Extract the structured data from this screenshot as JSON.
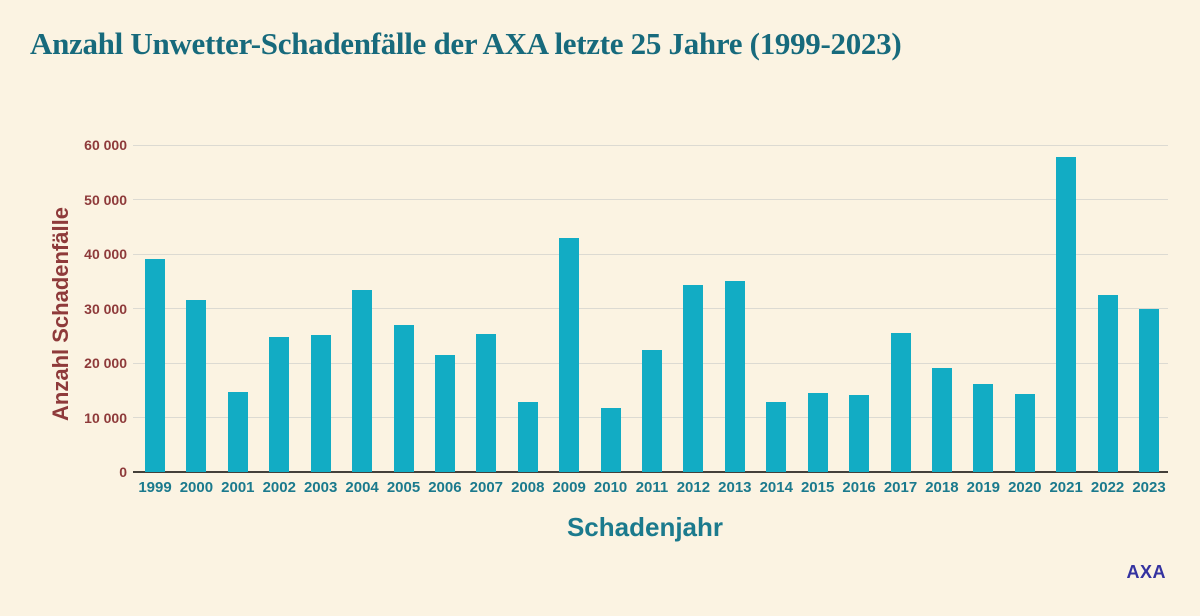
{
  "title": "Anzahl Unwetter-Schadenfälle der AXA letzte 25 Jahre (1999-2023)",
  "logo_text": "AXA",
  "chart_data": {
    "type": "bar",
    "title": "Anzahl Unwetter-Schadenfälle der AXA letzte 25 Jahre (1999-2023)",
    "xlabel": "Schadenjahr",
    "ylabel": "Anzahl Schadenfälle",
    "ylim": [
      0,
      60000
    ],
    "ytick_values": [
      0,
      10000,
      20000,
      30000,
      40000,
      50000,
      60000
    ],
    "ytick_labels": [
      "0",
      "10 000",
      "20 000",
      "30 000",
      "40 000",
      "50 000",
      "60 000"
    ],
    "grid": "horizontal",
    "legend": "none",
    "categories": [
      "1999",
      "2000",
      "2001",
      "2002",
      "2003",
      "2004",
      "2005",
      "2006",
      "2007",
      "2008",
      "2009",
      "2010",
      "2011",
      "2012",
      "2013",
      "2014",
      "2015",
      "2016",
      "2017",
      "2018",
      "2019",
      "2020",
      "2021",
      "2022",
      "2023"
    ],
    "values": [
      39000,
      31500,
      14700,
      24700,
      25100,
      33400,
      27000,
      21500,
      25300,
      12800,
      42900,
      11700,
      22400,
      34400,
      35000,
      12800,
      14500,
      14100,
      25500,
      19100,
      16200,
      14400,
      57800,
      32500,
      29900
    ]
  },
  "colors": {
    "background": "#FBF3E2",
    "bar": "#12ACC4",
    "title": "#176A7C",
    "axis_teal": "#1B7A8D",
    "axis_maroon": "#8E3A3A",
    "gridline": "#DCDAD2",
    "baseline": "#44403A",
    "logo": "#3432A0"
  }
}
